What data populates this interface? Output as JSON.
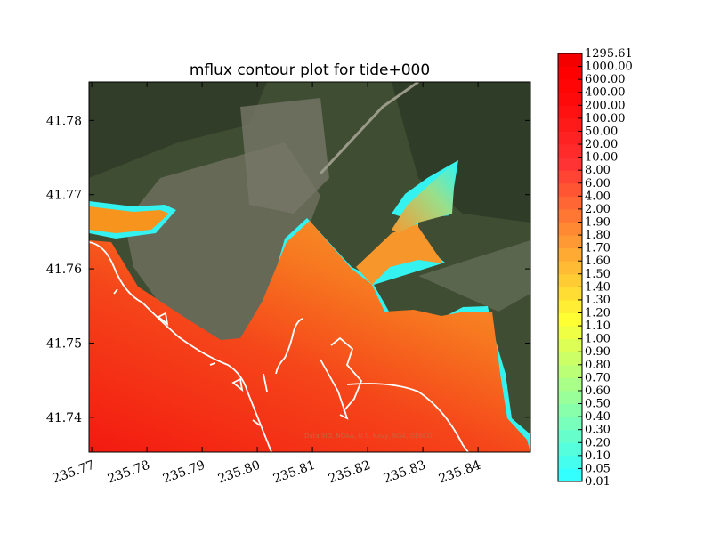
{
  "chart_data": {
    "type": "heatmap",
    "title": "mflux contour plot for tide+000",
    "xlabel": "",
    "ylabel": "",
    "xlim": [
      235.7695,
      235.8495
    ],
    "ylim": [
      41.7353,
      41.7852
    ],
    "x_ticks": [
      "235.77",
      "235.78",
      "235.79",
      "235.80",
      "235.81",
      "235.82",
      "235.83",
      "235.84"
    ],
    "x_tick_values": [
      235.77,
      235.78,
      235.79,
      235.8,
      235.81,
      235.82,
      235.83,
      235.84
    ],
    "y_ticks": [
      "41.74",
      "41.75",
      "41.76",
      "41.77",
      "41.78"
    ],
    "y_tick_values": [
      41.74,
      41.75,
      41.76,
      41.77,
      41.78
    ],
    "colorbar": {
      "levels": [
        "0.01",
        "0.05",
        "0.10",
        "0.20",
        "0.30",
        "0.40",
        "0.50",
        "0.60",
        "0.70",
        "0.80",
        "0.90",
        "1.00",
        "1.10",
        "1.20",
        "1.30",
        "1.40",
        "1.50",
        "1.60",
        "1.70",
        "1.80",
        "1.90",
        "2.00",
        "4.00",
        "6.00",
        "8.00",
        "10.00",
        "20.00",
        "50.00",
        "100.00",
        "200.00",
        "400.00",
        "600.00",
        "1000.00",
        "1295.61"
      ],
      "colors": [
        "#33ffff",
        "#44ffee",
        "#55ffdd",
        "#66ffcc",
        "#77ffbb",
        "#88ffaa",
        "#99ff99",
        "#aaff88",
        "#bbff77",
        "#ccff66",
        "#ddff55",
        "#eeff44",
        "#ffff33",
        "#ffee33",
        "#ffdd33",
        "#ffcc33",
        "#ffbb33",
        "#ffaa33",
        "#ff9933",
        "#ff8833",
        "#ff7733",
        "#ff6633",
        "#ff5533",
        "#ff4433",
        "#ff3333",
        "#ff2a2a",
        "#ff2222",
        "#ff1a1a",
        "#ff1111",
        "#ff0a0a",
        "#ff0505",
        "#ff0000",
        "#f50000"
      ]
    },
    "credit": "Data SIO, NOAA, U.S. Navy, NGA, GEBCO",
    "basemap": "satellite imagery"
  }
}
